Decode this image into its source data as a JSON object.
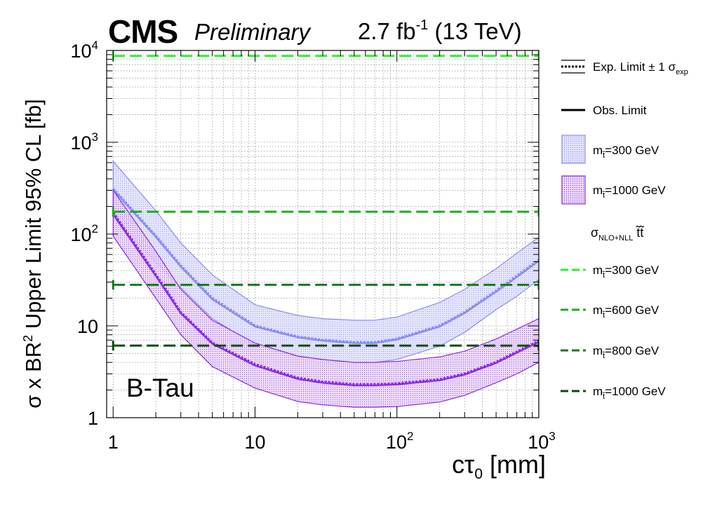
{
  "header": {
    "experiment": "CMS",
    "status": "Preliminary",
    "lumi": "2.7 fb",
    "lumi_exp": "-1",
    "energy": " (13 TeV)"
  },
  "axes": {
    "ylabel_pre": "σ x BR",
    "ylabel_exp": "2",
    "ylabel_post": " Upper Limit 95% CL [fb]",
    "xlabel_pre": "cτ",
    "xlabel_sub": "0",
    "xlabel_post": " [mm]"
  },
  "annotation": "B-Tau",
  "legend": {
    "exp": "Exp. Limit ± 1 σ",
    "exp_sub": "exp",
    "obs": "Obs. Limit",
    "band300": "=300 GeV",
    "band1000": "=1000 GeV",
    "xsec_header": "σ",
    "xsec_header_sub": "NLO+NLL",
    "xsec_header_post": " t̃t̃",
    "m_prefix": "m",
    "m_sub": "t̃",
    "xsec300": "=300 GeV",
    "xsec600": "=600 GeV",
    "xsec800": "=800 GeV",
    "xsec1000": "=1000 GeV"
  },
  "chart_data": {
    "type": "line",
    "x_scale": "log",
    "y_scale": "log",
    "xlim": [
      0.9,
      1000
    ],
    "ylim": [
      1,
      10000
    ],
    "grid": true,
    "x_ticks": [
      {
        "v": 1,
        "label": "1"
      },
      {
        "v": 10,
        "label": "10"
      },
      {
        "v": 100,
        "label": "10",
        "exp": "2"
      },
      {
        "v": 1000,
        "label": "10",
        "exp": "3"
      }
    ],
    "y_ticks": [
      {
        "v": 1,
        "label": "1"
      },
      {
        "v": 10,
        "label": "10"
      },
      {
        "v": 100,
        "label": "10",
        "exp": "2"
      },
      {
        "v": 1000,
        "label": "10",
        "exp": "3"
      },
      {
        "v": 10000,
        "label": "10",
        "exp": "4"
      }
    ],
    "x": [
      1,
      2,
      3,
      5,
      10,
      20,
      30,
      50,
      70,
      100,
      200,
      300,
      500,
      700,
      1000
    ],
    "bands": [
      {
        "name": "mt=300 GeV",
        "color": "#8c8cf0",
        "fill": "#b8b8f5",
        "expected": [
          310,
          95,
          45,
          20,
          10,
          7.6,
          7,
          6.6,
          6.6,
          7.2,
          10,
          14,
          24,
          35,
          52
        ],
        "observed": [
          305,
          93,
          44,
          19.5,
          9.8,
          7.5,
          6.9,
          6.5,
          6.5,
          7.1,
          9.8,
          13.8,
          23.5,
          34,
          51
        ],
        "upper": [
          620,
          180,
          80,
          36,
          17,
          13,
          12,
          11.5,
          11.5,
          12.5,
          18,
          25,
          42,
          62,
          92
        ],
        "lower": [
          150,
          50,
          26,
          12,
          6.2,
          4.6,
          4.3,
          4.0,
          4.0,
          4.3,
          6.0,
          8.5,
          15,
          21,
          32
        ]
      },
      {
        "name": "mt=1000 GeV",
        "color": "#8a2be2",
        "fill": "#c9a3ea",
        "expected": [
          170,
          36,
          14,
          6.5,
          3.8,
          2.7,
          2.45,
          2.3,
          2.3,
          2.35,
          2.6,
          3.0,
          4.0,
          5.2,
          6.8
        ],
        "observed": [
          165,
          35,
          13.7,
          6.4,
          3.7,
          2.65,
          2.4,
          2.25,
          2.25,
          2.3,
          2.55,
          2.95,
          3.95,
          5.1,
          6.7
        ],
        "upper": [
          300,
          65,
          25,
          11.5,
          6.5,
          4.7,
          4.3,
          4.0,
          4.0,
          4.1,
          4.6,
          5.3,
          7.2,
          9.2,
          12
        ],
        "lower": [
          95,
          20,
          8,
          3.6,
          2.1,
          1.5,
          1.38,
          1.3,
          1.3,
          1.32,
          1.48,
          1.75,
          2.4,
          3.0,
          4.0
        ]
      }
    ],
    "xsec_lines": [
      {
        "name": "mt=300 GeV",
        "value": 8700,
        "color": "#33ee33"
      },
      {
        "name": "mt=600 GeV",
        "value": 175,
        "color": "#22aa22"
      },
      {
        "name": "mt=800 GeV",
        "value": 28,
        "color": "#177a17"
      },
      {
        "name": "mt=1000 GeV",
        "value": 6.1,
        "color": "#0d4a0d"
      }
    ]
  }
}
